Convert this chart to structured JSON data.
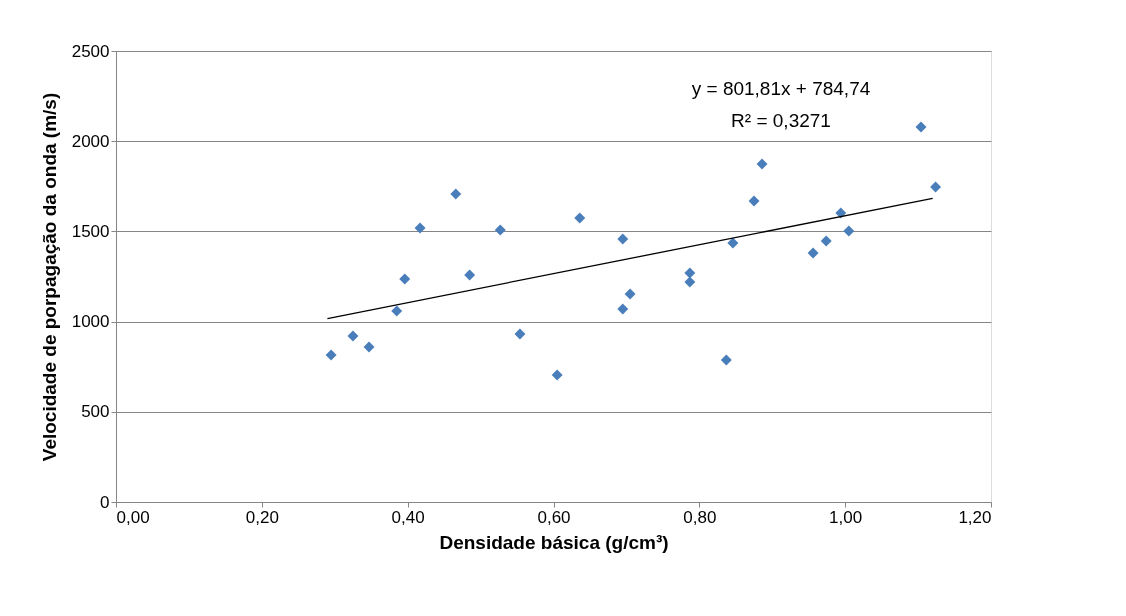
{
  "chart_data": {
    "type": "scatter",
    "xlabel": "Densidade básica (g/cm³)",
    "ylabel": "Velocidade de porpagação da onda (m/s)",
    "xlim": [
      0,
      1.2
    ],
    "ylim": [
      0,
      2500
    ],
    "xticks": [
      {
        "value": 0,
        "label": "0,00"
      },
      {
        "value": 0.2,
        "label": "0,20"
      },
      {
        "value": 0.4,
        "label": "0,40"
      },
      {
        "value": 0.6,
        "label": "0,60"
      },
      {
        "value": 0.8,
        "label": "0,80"
      },
      {
        "value": 1.0,
        "label": "1,00"
      },
      {
        "value": 1.2,
        "label": "1,20"
      }
    ],
    "yticks": [
      0,
      500,
      1000,
      1500,
      2000,
      2500
    ],
    "grid": "y",
    "marker": "diamond",
    "annotations": [
      "y = 801,81x + 784,74",
      "R² = 0,3271"
    ],
    "series": [
      {
        "color": "#4a7ebb",
        "x": [
          0.295,
          0.325,
          0.347,
          0.385,
          0.396,
          0.417,
          0.466,
          0.485,
          0.527,
          0.554,
          0.605,
          0.636,
          0.695,
          0.695,
          0.705,
          0.787,
          0.787,
          0.837,
          0.846,
          0.875,
          0.886,
          0.956,
          0.974,
          0.994,
          1.005,
          1.104,
          1.124
        ],
        "values": [
          815,
          920,
          859,
          1059,
          1236,
          1519,
          1707,
          1258,
          1508,
          931,
          704,
          1574,
          1458,
          1070,
          1153,
          1269,
          1220,
          787,
          1436,
          1669,
          1874,
          1380,
          1447,
          1602,
          1502,
          2079,
          1746
        ]
      },
      {
        "type": "line",
        "marker": "none",
        "color": "#000000",
        "x": [
          0.29,
          1.12
        ],
        "values": [
          1017,
          1683
        ]
      }
    ]
  }
}
